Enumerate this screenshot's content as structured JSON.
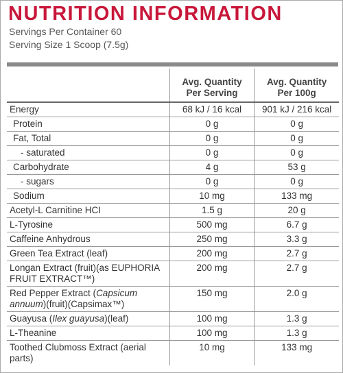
{
  "header": {
    "title": "NUTRITION INFORMATION",
    "servings": "Servings Per Container 60",
    "serving_size": "Serving Size 1 Scoop (7.5g)"
  },
  "table": {
    "columns": [
      [
        "Avg. Quantity",
        "Per Serving"
      ],
      [
        "Avg. Quantity",
        "Per 100g"
      ]
    ],
    "rows": [
      {
        "name": [
          {
            "text": "Energy"
          }
        ],
        "per_serving": "68 kJ / 16 kcal",
        "per_100g": "901 kJ / 216 kcal"
      },
      {
        "name": [
          {
            "text": "Protein"
          }
        ],
        "per_serving": "0 g",
        "per_100g": "0 g"
      },
      {
        "name": [
          {
            "text": "Fat, Total"
          }
        ],
        "per_serving": "0 g",
        "per_100g": "0 g"
      },
      {
        "name": [
          {
            "text": "- saturated"
          }
        ],
        "per_serving": "0 g",
        "per_100g": "0 g"
      },
      {
        "name": [
          {
            "text": "Carbohydrate"
          }
        ],
        "per_serving": "4 g",
        "per_100g": "53 g"
      },
      {
        "name": [
          {
            "text": "- sugars"
          }
        ],
        "per_serving": "0 g",
        "per_100g": "0 g"
      },
      {
        "name": [
          {
            "text": "Sodium"
          }
        ],
        "per_serving": "10 mg",
        "per_100g": "133 mg"
      },
      {
        "name": [
          {
            "text": "Acetyl-L Carnitine HCI"
          }
        ],
        "per_serving": "1.5 g",
        "per_100g": "20 g"
      },
      {
        "name": [
          {
            "text": "L-Tyrosine"
          }
        ],
        "per_serving": "500 mg",
        "per_100g": "6.7 g"
      },
      {
        "name": [
          {
            "text": "Caffeine Anhydrous"
          }
        ],
        "per_serving": "250 mg",
        "per_100g": "3.3 g"
      },
      {
        "name": [
          {
            "text": "Green Tea Extract (leaf)"
          }
        ],
        "per_serving": "200 mg",
        "per_100g": "2.7 g"
      },
      {
        "name": [
          {
            "text": "Longan Extract (fruit)(as EUPHORIA FRUIT EXTRACT™)"
          }
        ],
        "per_serving": "200 mg",
        "per_100g": "2.7 g"
      },
      {
        "name": [
          {
            "text": "Red Pepper Extract ("
          },
          {
            "text": "Capsicum annuum",
            "italic": true
          },
          {
            "text": ")(fruit)(Capsimax™)"
          }
        ],
        "per_serving": "150 mg",
        "per_100g": "2.0 g"
      },
      {
        "name": [
          {
            "text": "Guayusa ("
          },
          {
            "text": "Ilex guayusa",
            "italic": true
          },
          {
            "text": ")(leaf)"
          }
        ],
        "per_serving": "100 mg",
        "per_100g": "1.3 g"
      },
      {
        "name": [
          {
            "text": "L-Theanine"
          }
        ],
        "per_serving": "100 mg",
        "per_100g": "1.3 g"
      },
      {
        "name": [
          {
            "text": "Toothed Clubmoss Extract (aerial parts)"
          }
        ],
        "per_serving": "10 mg",
        "per_100g": "133 mg"
      }
    ]
  }
}
